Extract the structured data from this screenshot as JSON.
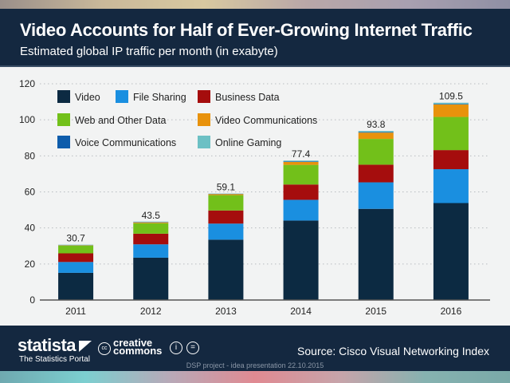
{
  "header": {
    "title": "Video Accounts for Half of Ever-Growing Internet Traffic",
    "subtitle": "Estimated global IP traffic per month (in exabyte)"
  },
  "footer": {
    "logo": "statista",
    "tagline": "The Statistics Portal",
    "license_text": "creative commons",
    "source": "Source: Cisco Visual Networking Index",
    "note": "DSP project - idea presentation 22.10.2015"
  },
  "chart_data": {
    "type": "bar",
    "stacked": true,
    "title": "Video Accounts for Half of Ever-Growing Internet Traffic",
    "subtitle": "Estimated global IP traffic per month (in exabyte)",
    "categories": [
      "2011",
      "2012",
      "2013",
      "2014",
      "2015",
      "2016"
    ],
    "ylim": [
      0,
      120
    ],
    "yticks": [
      0,
      20,
      40,
      60,
      80,
      100,
      120
    ],
    "grid": true,
    "legend_position": "top-left",
    "totals": [
      "30.7",
      "43.5",
      "59.1",
      "77.4",
      "93.8",
      "109.5"
    ],
    "series": [
      {
        "name": "Video",
        "color": "#0c2a42",
        "values": [
          15.1,
          23.5,
          33.5,
          44.1,
          50.6,
          53.8
        ]
      },
      {
        "name": "File Sharing",
        "color": "#1a8fe0",
        "values": [
          6.0,
          7.4,
          8.9,
          11.5,
          14.7,
          18.8
        ]
      },
      {
        "name": "Business Data",
        "color": "#a50d0d",
        "values": [
          4.8,
          5.9,
          7.3,
          8.5,
          9.8,
          10.6
        ]
      },
      {
        "name": "Web and Other Data",
        "color": "#72c01a",
        "values": [
          4.3,
          5.8,
          8.5,
          10.9,
          14.3,
          18.4
        ]
      },
      {
        "name": "Video Communications",
        "color": "#e8920c",
        "values": [
          0.2,
          0.5,
          0.6,
          1.6,
          3.5,
          6.9
        ]
      },
      {
        "name": "Voice Communications",
        "color": "#0e5cab",
        "values": [
          0.1,
          0.2,
          0.15,
          0.3,
          0.3,
          0.3
        ]
      },
      {
        "name": "Online Gaming",
        "color": "#6cc0c4",
        "values": [
          0.2,
          0.2,
          0.15,
          0.5,
          0.6,
          0.7
        ]
      }
    ]
  }
}
